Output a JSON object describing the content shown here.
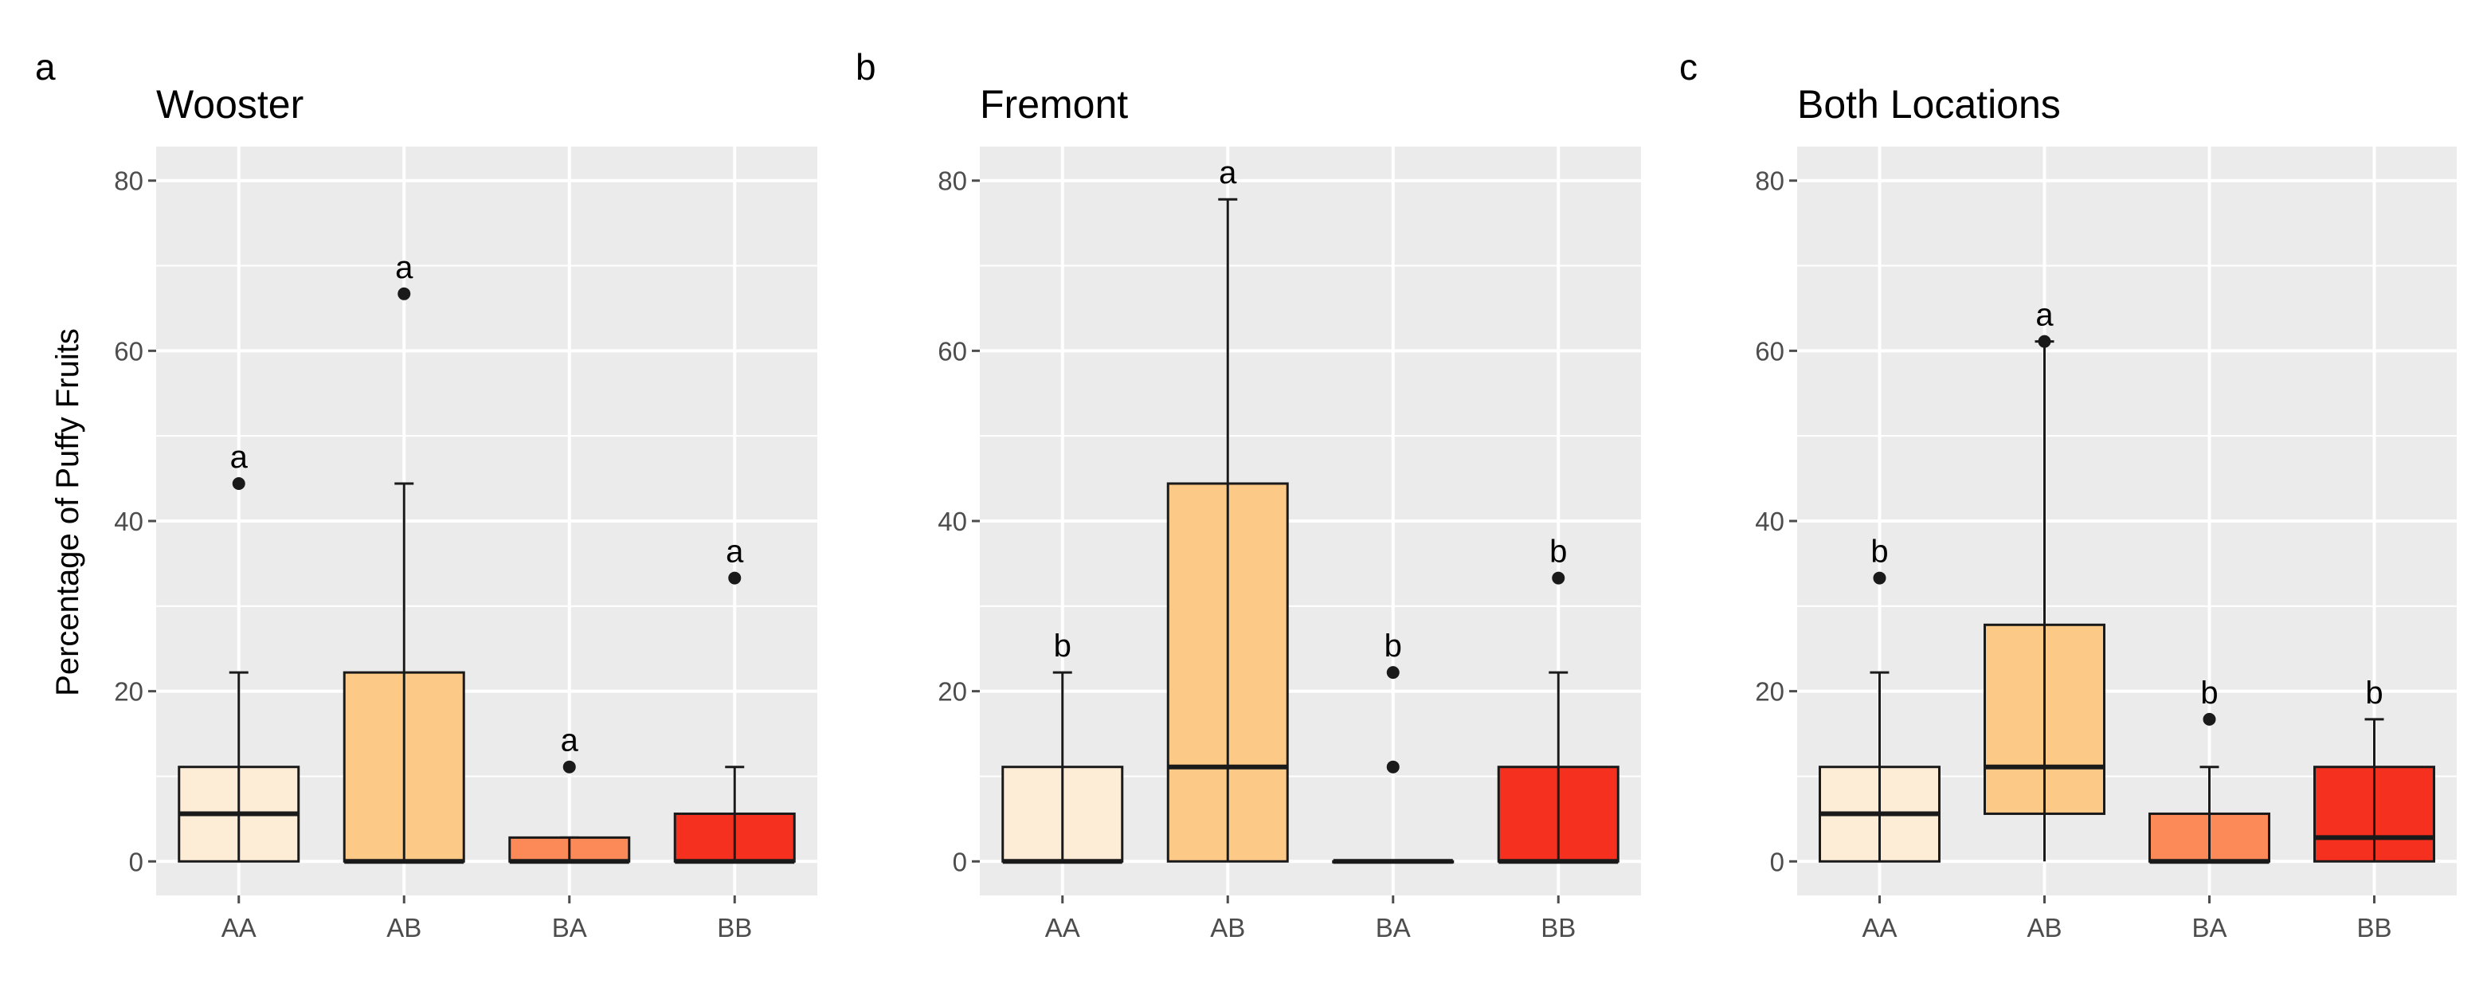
{
  "figure": {
    "ylabel": "Percentage of Puffy Fruits",
    "colors": {
      "panel_background": "#ebebeb",
      "gridline": "#ffffff",
      "box_stroke": "#1a1a1a",
      "AA": "#feedd6",
      "AB": "#fdc987",
      "BA": "#fb8a58",
      "BB": "#f5301e"
    }
  },
  "chart_data": [
    {
      "type": "boxplot",
      "panel": "a",
      "title": "Wooster",
      "xlabel": "",
      "ylabel": "Percentage of Puffy Fruits",
      "ylim": [
        -4,
        84
      ],
      "yticks": [
        0,
        20,
        40,
        60,
        80
      ],
      "categories": [
        "AA",
        "AB",
        "BA",
        "BB"
      ],
      "boxes": [
        {
          "category": "AA",
          "min": 0,
          "q1": 0,
          "median": 5.6,
          "q3": 11.1,
          "max": 22.2,
          "outliers": [
            44.4
          ],
          "label": "a"
        },
        {
          "category": "AB",
          "min": 0,
          "q1": 0,
          "median": 0,
          "q3": 22.2,
          "max": 44.4,
          "outliers": [
            66.7
          ],
          "label": "a"
        },
        {
          "category": "BA",
          "min": 0,
          "q1": 0,
          "median": 0,
          "q3": 2.8,
          "max": 2.8,
          "outliers": [
            11.1
          ],
          "label": "a"
        },
        {
          "category": "BB",
          "min": 0,
          "q1": 0,
          "median": 0,
          "q3": 5.6,
          "max": 11.1,
          "outliers": [
            33.3
          ],
          "label": "a"
        }
      ]
    },
    {
      "type": "boxplot",
      "panel": "b",
      "title": "Fremont",
      "xlabel": "",
      "ylabel": "",
      "ylim": [
        -4,
        84
      ],
      "yticks": [
        0,
        20,
        40,
        60,
        80
      ],
      "categories": [
        "AA",
        "AB",
        "BA",
        "BB"
      ],
      "boxes": [
        {
          "category": "AA",
          "min": 0,
          "q1": 0,
          "median": 0,
          "q3": 11.1,
          "max": 22.2,
          "outliers": [],
          "label": "b"
        },
        {
          "category": "AB",
          "min": 0,
          "q1": 0,
          "median": 11.1,
          "q3": 44.4,
          "max": 77.8,
          "outliers": [],
          "label": "a"
        },
        {
          "category": "BA",
          "min": 0,
          "q1": 0,
          "median": 0,
          "q3": 0,
          "max": 0,
          "outliers": [
            11.1,
            22.2
          ],
          "label": "b"
        },
        {
          "category": "BB",
          "min": 0,
          "q1": 0,
          "median": 0,
          "q3": 11.1,
          "max": 22.2,
          "outliers": [
            33.3
          ],
          "label": "b"
        }
      ]
    },
    {
      "type": "boxplot",
      "panel": "c",
      "title": "Both Locations",
      "xlabel": "",
      "ylabel": "",
      "ylim": [
        -4,
        84
      ],
      "yticks": [
        0,
        20,
        40,
        60,
        80
      ],
      "categories": [
        "AA",
        "AB",
        "BA",
        "BB"
      ],
      "boxes": [
        {
          "category": "AA",
          "min": 0,
          "q1": 0,
          "median": 5.6,
          "q3": 11.1,
          "max": 22.2,
          "outliers": [
            33.3
          ],
          "label": "b"
        },
        {
          "category": "AB",
          "min": 0,
          "q1": 5.6,
          "median": 11.1,
          "q3": 27.8,
          "max": 61.1,
          "outliers": [
            61.1
          ],
          "label": "a"
        },
        {
          "category": "BA",
          "min": 0,
          "q1": 0,
          "median": 0,
          "q3": 5.6,
          "max": 11.1,
          "outliers": [
            16.7
          ],
          "label": "b"
        },
        {
          "category": "BB",
          "min": 0,
          "q1": 0,
          "median": 2.8,
          "q3": 11.1,
          "max": 16.7,
          "outliers": [],
          "label": "b"
        }
      ]
    }
  ]
}
